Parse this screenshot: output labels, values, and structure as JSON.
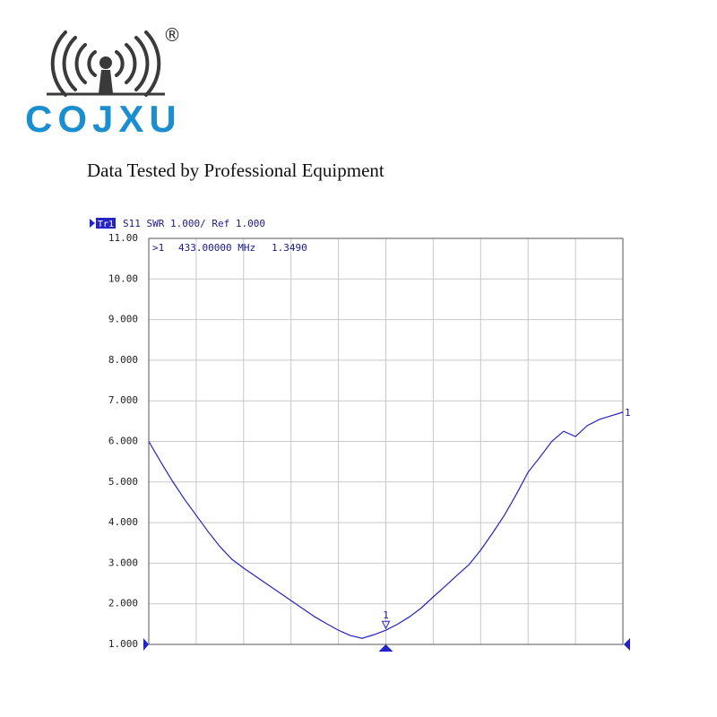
{
  "logo": {
    "brand": "COJXU",
    "mark": "®"
  },
  "subtitle": "Data Tested by Professional Equipment",
  "chart_data": {
    "type": "line",
    "trace": "Tr1",
    "title": "S11  SWR 1.000/ Ref 1.000",
    "marker": {
      "name": ">1",
      "frequency": "433.00000 MHz",
      "value": 1.349,
      "value_label": "1.3490",
      "label": "1"
    },
    "end_label": "1",
    "series": [
      {
        "name": "S11",
        "color": "#2323c8",
        "values": [
          6.0,
          5.5,
          5.02,
          4.58,
          4.18,
          3.78,
          3.41,
          3.1,
          2.88,
          2.68,
          2.48,
          2.28,
          2.08,
          1.88,
          1.68,
          1.51,
          1.35,
          1.22,
          1.15,
          1.24,
          1.35,
          1.5,
          1.68,
          1.9,
          2.17,
          2.43,
          2.7,
          2.96,
          3.32,
          3.74,
          4.18,
          4.69,
          5.24,
          5.61,
          6.0,
          6.25,
          6.12,
          6.39,
          6.54,
          6.63,
          6.72
        ]
      }
    ],
    "ylim": [
      1,
      11
    ],
    "yticks": [
      {
        "value": 1,
        "label": "1.000"
      },
      {
        "value": 2,
        "label": "2.000"
      },
      {
        "value": 3,
        "label": "3.000"
      },
      {
        "value": 4,
        "label": "4.000"
      },
      {
        "value": 5,
        "label": "5.000"
      },
      {
        "value": 6,
        "label": "6.000"
      },
      {
        "value": 7,
        "label": "7.000"
      },
      {
        "value": 8,
        "label": "8.000"
      },
      {
        "value": 9,
        "label": "9.000"
      },
      {
        "value": 10,
        "label": "10.00"
      },
      {
        "value": 11,
        "label": "11.00"
      }
    ],
    "grid": true
  }
}
